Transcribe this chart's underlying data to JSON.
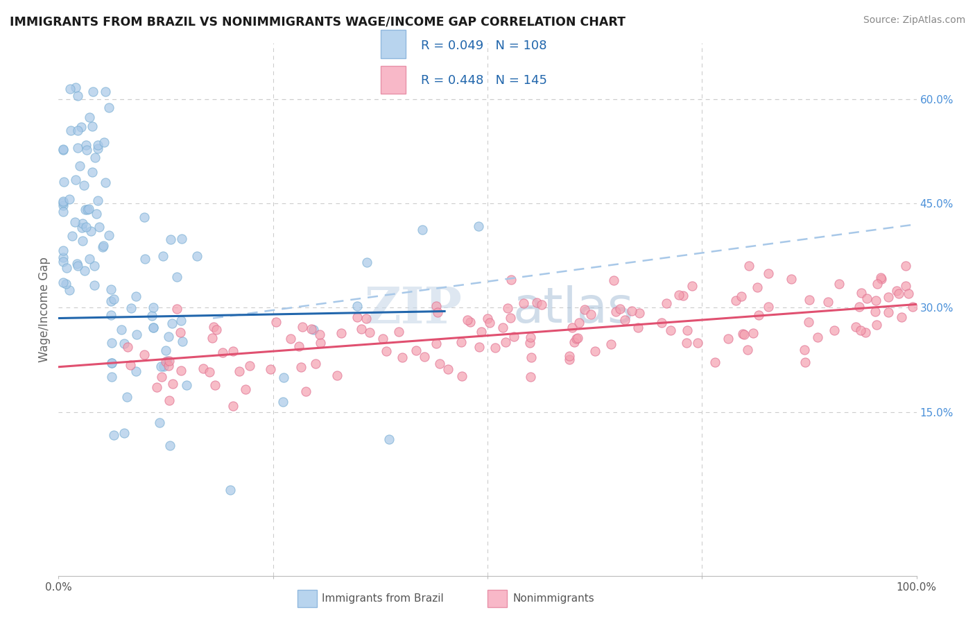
{
  "title": "IMMIGRANTS FROM BRAZIL VS NONIMMIGRANTS WAGE/INCOME GAP CORRELATION CHART",
  "source": "Source: ZipAtlas.com",
  "ylabel": "Wage/Income Gap",
  "blue_R": 0.049,
  "blue_N": 108,
  "pink_R": 0.448,
  "pink_N": 145,
  "blue_dot_color": "#a8c8e8",
  "blue_dot_edge": "#7aafd4",
  "blue_line_color": "#2166ac",
  "blue_dash_color": "#a8c8e8",
  "pink_dot_color": "#f4a0b0",
  "pink_dot_edge": "#e07090",
  "pink_line_color": "#e05070",
  "background_color": "#ffffff",
  "grid_color": "#cccccc",
  "legend_text_color": "#2166ac",
  "xlim": [
    0,
    1.0
  ],
  "ylim": [
    -0.085,
    0.68
  ],
  "right_yticks": [
    0.15,
    0.3,
    0.45,
    0.6
  ],
  "right_yticklabels": [
    "15.0%",
    "30.0%",
    "45.0%",
    "60.0%"
  ],
  "blue_line_x0": 0.0,
  "blue_line_x1": 0.45,
  "blue_line_y0": 0.285,
  "blue_line_y1": 0.295,
  "dash_line_x0": 0.18,
  "dash_line_x1": 1.0,
  "dash_line_y0": 0.285,
  "dash_line_y1": 0.42,
  "pink_line_x0": 0.0,
  "pink_line_x1": 1.0,
  "pink_line_y0": 0.215,
  "pink_line_y1": 0.305
}
